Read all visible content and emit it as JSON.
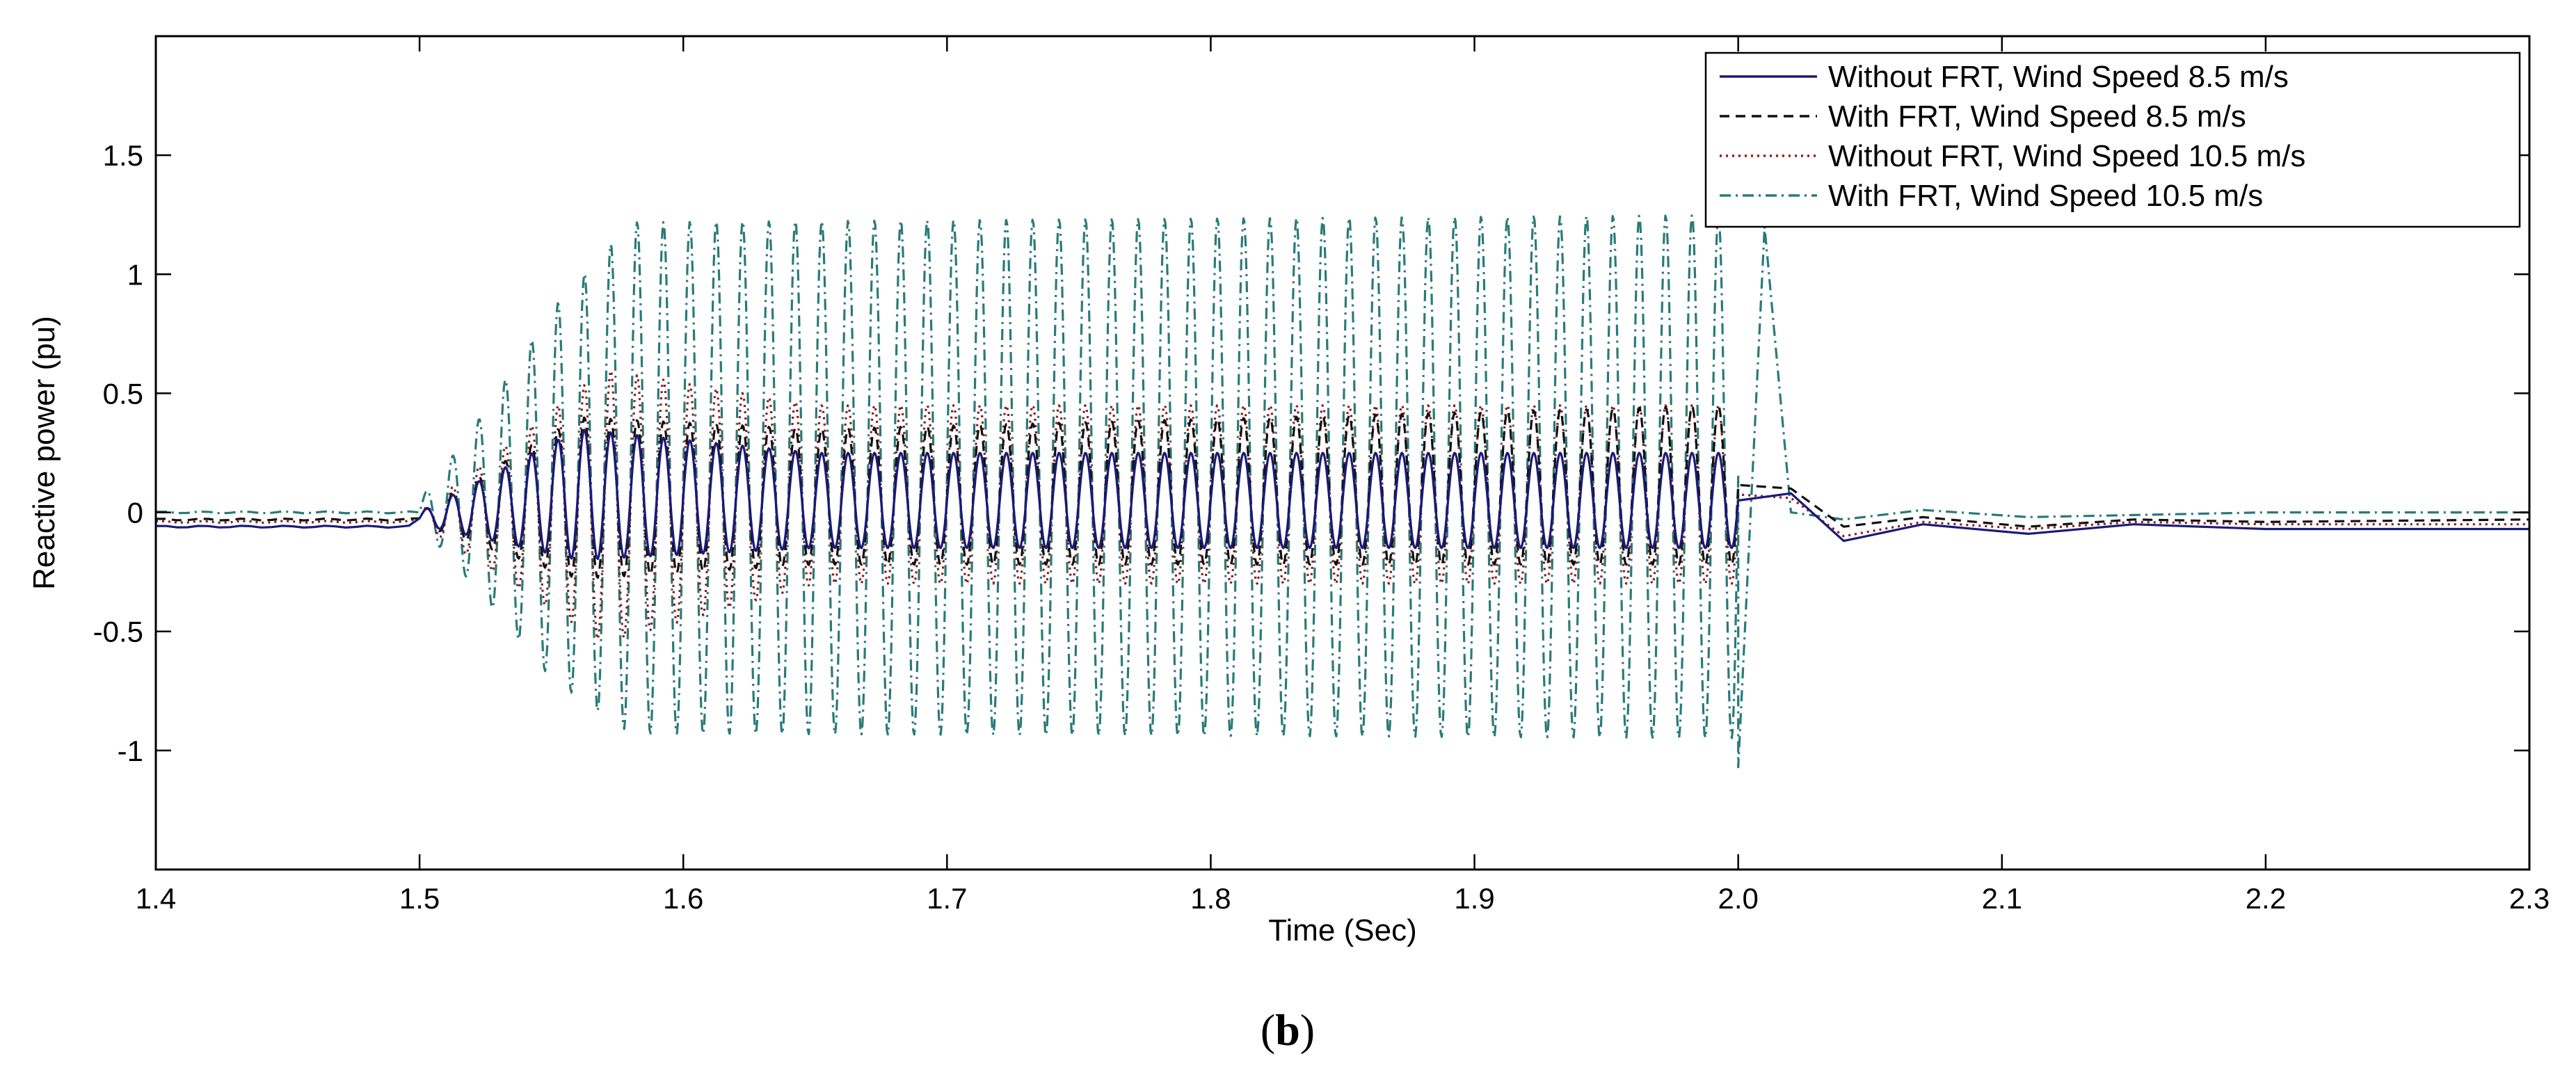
{
  "chart_data": {
    "type": "line",
    "title": "",
    "xlabel": "Time (Sec)",
    "ylabel": "Reactive power (pu)",
    "xlim": [
      1.4,
      2.3
    ],
    "ylim": [
      -1.5,
      2.0
    ],
    "xticks": [
      "1.4",
      "1.5",
      "1.6",
      "1.7",
      "1.8",
      "1.9",
      "2.0",
      "2.1",
      "2.2",
      "2.3"
    ],
    "yticks": [
      "-1",
      "-0.5",
      "0",
      "0.5",
      "1",
      "1.5"
    ],
    "grid": false,
    "legend_position": "top-right",
    "fault_window": {
      "start": 1.5,
      "clear": 2.0,
      "oscillation_hz": 100
    },
    "series": [
      {
        "name": "Without FRT, Wind Speed 8.5 m/s",
        "color": "#1a1a7a",
        "style": "solid",
        "pre_fault": -0.06,
        "post_fault": -0.07,
        "oscillation_envelope": [
          {
            "t": 1.5,
            "min": -0.05,
            "max": 0.0
          },
          {
            "t": 1.56,
            "min": -0.2,
            "max": 0.35
          },
          {
            "t": 1.65,
            "min": -0.15,
            "max": 0.25
          },
          {
            "t": 2.0,
            "min": -0.15,
            "max": 0.25
          }
        ],
        "samples": [
          [
            1.4,
            -0.06
          ],
          [
            1.5,
            -0.06
          ],
          [
            2.02,
            0.08
          ],
          [
            2.04,
            -0.12
          ],
          [
            2.07,
            -0.05
          ],
          [
            2.11,
            -0.09
          ],
          [
            2.15,
            -0.05
          ],
          [
            2.2,
            -0.07
          ],
          [
            2.3,
            -0.07
          ]
        ]
      },
      {
        "name": "With FRT, Wind Speed 8.5 m/s",
        "color": "#111111",
        "style": "dashed",
        "pre_fault": -0.03,
        "post_fault": -0.03,
        "oscillation_envelope": [
          {
            "t": 1.5,
            "min": -0.05,
            "max": 0.0
          },
          {
            "t": 1.56,
            "min": -0.28,
            "max": 0.4
          },
          {
            "t": 1.65,
            "min": -0.22,
            "max": 0.35
          },
          {
            "t": 2.0,
            "min": -0.22,
            "max": 0.45
          }
        ],
        "samples": [
          [
            1.4,
            -0.03
          ],
          [
            1.5,
            -0.03
          ],
          [
            2.02,
            0.1
          ],
          [
            2.04,
            -0.06
          ],
          [
            2.07,
            -0.02
          ],
          [
            2.11,
            -0.06
          ],
          [
            2.15,
            -0.03
          ],
          [
            2.2,
            -0.04
          ],
          [
            2.3,
            -0.03
          ]
        ]
      },
      {
        "name": "Without FRT, Wind Speed 10.5 m/s",
        "color": "#8b1a1a",
        "style": "dotted",
        "pre_fault": -0.04,
        "post_fault": -0.05,
        "oscillation_envelope": [
          {
            "t": 1.5,
            "min": -0.05,
            "max": 0.0
          },
          {
            "t": 1.57,
            "min": -0.55,
            "max": 0.6
          },
          {
            "t": 1.65,
            "min": -0.3,
            "max": 0.45
          },
          {
            "t": 2.0,
            "min": -0.3,
            "max": 0.45
          }
        ],
        "samples": [
          [
            1.4,
            -0.04
          ],
          [
            1.5,
            -0.04
          ],
          [
            2.02,
            0.06
          ],
          [
            2.04,
            -0.1
          ],
          [
            2.07,
            -0.04
          ],
          [
            2.11,
            -0.07
          ],
          [
            2.15,
            -0.04
          ],
          [
            2.2,
            -0.05
          ],
          [
            2.3,
            -0.05
          ]
        ]
      },
      {
        "name": "With FRT, Wind Speed 10.5 m/s",
        "color": "#2a7a7a",
        "style": "dashdot",
        "pre_fault": 0.0,
        "post_fault": 0.0,
        "oscillation_envelope": [
          {
            "t": 1.5,
            "min": -0.05,
            "max": 0.05
          },
          {
            "t": 1.52,
            "min": -0.3,
            "max": 0.35
          },
          {
            "t": 1.55,
            "min": -0.7,
            "max": 0.85
          },
          {
            "t": 1.58,
            "min": -0.93,
            "max": 1.22
          },
          {
            "t": 2.0,
            "min": -0.95,
            "max": 1.25
          }
        ],
        "samples": [
          [
            1.4,
            0.0
          ],
          [
            1.5,
            0.0
          ],
          [
            2.0,
            -1.07
          ],
          [
            2.01,
            1.2
          ],
          [
            2.02,
            0.0
          ],
          [
            2.04,
            -0.03
          ],
          [
            2.07,
            0.01
          ],
          [
            2.11,
            -0.02
          ],
          [
            2.2,
            0.0
          ],
          [
            2.3,
            0.0
          ]
        ]
      }
    ]
  },
  "caption": {
    "open": "(",
    "letter": "b",
    "close": ")"
  }
}
